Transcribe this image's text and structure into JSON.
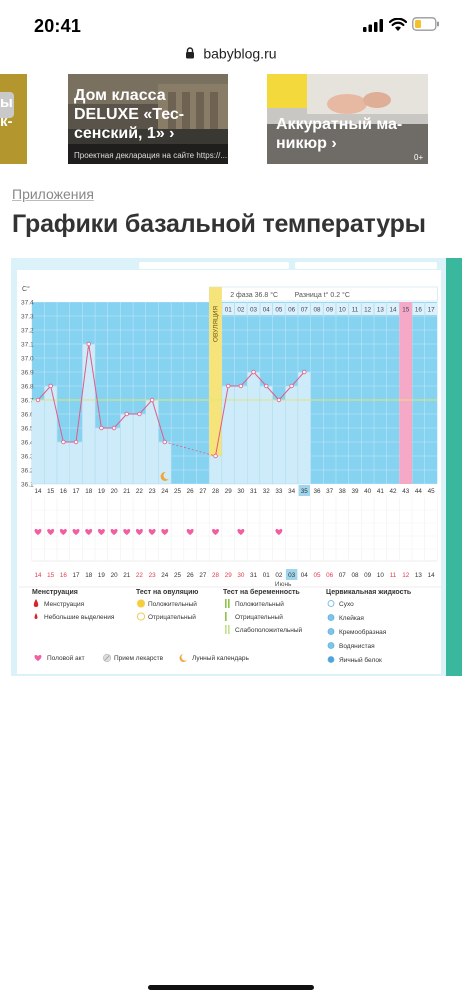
{
  "status_bar": {
    "time": "20:41"
  },
  "browser": {
    "url": "babyblog.ru"
  },
  "ads": [
    {
      "title_lines": [
        "Дом класса",
        "DELUXE «Тес-",
        "сенский, 1» ›"
      ],
      "caption": "Проектная декларация на сайте https://..."
    },
    {
      "title_lines": [
        "Аккуратный ма-",
        "никюр ›"
      ],
      "badge": "0+"
    }
  ],
  "ad_left_partial": {
    "line1": "ы",
    "line2": "к-"
  },
  "section": {
    "label": "Приложения"
  },
  "page": {
    "title": "Графики базальной температуры"
  },
  "chart_header": {
    "unit": "С°",
    "phase_text": "2 фаза 36.8 °С",
    "diff_text": "Разница t° 0.2 °С",
    "ovulation_label": "ОВУЛЯЦИЯ",
    "phase_days": [
      "01",
      "02",
      "03",
      "04",
      "05",
      "06",
      "07",
      "08",
      "09",
      "10",
      "11",
      "12",
      "13",
      "14",
      "15",
      "16",
      "17"
    ]
  },
  "chart_data": {
    "type": "line",
    "title": "Графики базальной температуры",
    "ylabel": "С°",
    "ylim": [
      36.1,
      37.4
    ],
    "y_ticks": [
      "37.4",
      "37.3",
      "37.2",
      "37.1",
      "37.0",
      "36.9",
      "36.8",
      "36.7",
      "36.6",
      "36.5",
      "36.4",
      "36.3",
      "36.2",
      "36.1"
    ],
    "cycle_days": [
      "14",
      "15",
      "16",
      "17",
      "18",
      "19",
      "20",
      "21",
      "22",
      "23",
      "24",
      "25",
      "26",
      "27",
      "28",
      "29",
      "30",
      "31",
      "32",
      "33",
      "34",
      "35",
      "36",
      "37",
      "38",
      "39",
      "40",
      "41",
      "42",
      "43",
      "44",
      "45"
    ],
    "highlight_day": "35",
    "calendar_dates": [
      "14",
      "15",
      "16",
      "17",
      "18",
      "19",
      "20",
      "21",
      "22",
      "23",
      "24",
      "25",
      "26",
      "27",
      "28",
      "29",
      "30",
      "31",
      "01",
      "02",
      "03",
      "04",
      "05",
      "06",
      "07",
      "08",
      "09",
      "10",
      "11",
      "12",
      "13",
      "14"
    ],
    "red_dates_idx": [
      0,
      1,
      2,
      8,
      9,
      14,
      15,
      16,
      22,
      23,
      28,
      29
    ],
    "highlight_date_idx": 20,
    "month_label": "Июнь",
    "month_label_idx": 19,
    "coverline": 36.7,
    "ovulation_idx": 14,
    "pink_band_idx": 29,
    "moon_idx": 10,
    "series": [
      {
        "segments": [
          [
            [
              0,
              36.7
            ],
            [
              1,
              36.8
            ],
            [
              2,
              36.4
            ],
            [
              3,
              36.4
            ],
            [
              4,
              37.1
            ],
            [
              5,
              36.5
            ],
            [
              6,
              36.5
            ],
            [
              7,
              36.6
            ],
            [
              8,
              36.6
            ],
            [
              9,
              36.7
            ],
            [
              10,
              36.4
            ]
          ],
          [
            [
              14,
              36.3
            ],
            [
              15,
              36.8
            ],
            [
              16,
              36.8
            ],
            [
              17,
              36.9
            ],
            [
              18,
              36.8
            ],
            [
              19,
              36.7
            ],
            [
              20,
              36.8
            ],
            [
              21,
              36.9
            ]
          ]
        ],
        "dashed": [
          [
            10,
            36.4
          ],
          [
            14,
            36.3
          ]
        ]
      }
    ],
    "hearts_idx": [
      0,
      1,
      2,
      3,
      4,
      5,
      6,
      7,
      8,
      9,
      10,
      12,
      14,
      16,
      19
    ]
  },
  "legend": {
    "col1": {
      "title": "Менструация",
      "items": [
        "Менструация",
        "Небольшие выделения"
      ]
    },
    "col2": {
      "title": "Тест на овуляцию",
      "items": [
        "Положительный",
        "Отрицательный"
      ]
    },
    "col3": {
      "title": "Тест на беременность",
      "items": [
        "Положительный",
        "Отрицательный",
        "Слабоположительный"
      ]
    },
    "col4": {
      "title": "Цервикальная жидкость",
      "items": [
        "Сухо",
        "Клейкая",
        "Кремообразная",
        "Водянистая",
        "Яичный белок"
      ]
    },
    "bottom": [
      "Половой акт",
      "Прием лекарств",
      "Лунный календарь"
    ]
  },
  "colors": {
    "sky": "#86d2f1",
    "bar": "#cdebf8",
    "line": "#e05c8a",
    "heart": "#f25ea2",
    "ovulation": "#f6e37a",
    "pink_band": "#f5a9c6",
    "frame": "#dcf2f9",
    "teal": "#3ab89e"
  }
}
